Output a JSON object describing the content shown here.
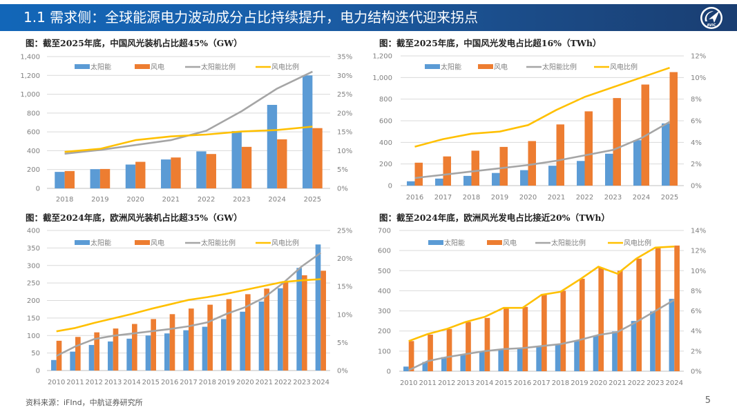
{
  "header": {
    "title": "1.1 需求侧：全球能源电力波动成分占比持续提升，电力结构迭代迎来拐点",
    "logo_icon": "avic-plane-logo-icon",
    "logo_text": "AVIC"
  },
  "legend_labels": [
    "太阳能",
    "风电",
    "太阳能比例",
    "风电比例"
  ],
  "colors": {
    "solar": "#5b9bd5",
    "wind": "#ed7d31",
    "solar_ratio": "#a5a5a5",
    "wind_ratio": "#ffc000",
    "banner": "#1a5ea8"
  },
  "footer": {
    "source": "资料来源：iFInd，中航证券研究所",
    "page": "5"
  },
  "chart_data": [
    {
      "type": "bar",
      "title": "图：截至2025年底，中国风光装机占比超45%（GW）",
      "categories": [
        "2018",
        "2019",
        "2020",
        "2021",
        "2022",
        "2023",
        "2024",
        "2025"
      ],
      "ylim": [
        0,
        1400
      ],
      "yticks": [
        0,
        200,
        400,
        600,
        800,
        1000,
        1200,
        1400
      ],
      "ytick_labels": [
        "0",
        "200",
        "400",
        "600",
        "800",
        "1,000",
        "1,200",
        "1,400"
      ],
      "y2lim": [
        0,
        35
      ],
      "y2ticks": [
        0,
        5,
        10,
        15,
        20,
        25,
        30,
        35
      ],
      "y2tick_labels": [
        "0%",
        "5%",
        "10%",
        "15%",
        "20%",
        "25%",
        "30%",
        "35%"
      ],
      "legend": "top",
      "series": [
        {
          "name": "太阳能",
          "kind": "bar",
          "axis": "left",
          "values": [
            175,
            204,
            253,
            307,
            393,
            609,
            887,
            1200
          ]
        },
        {
          "name": "风电",
          "kind": "bar",
          "axis": "left",
          "values": [
            184,
            206,
            282,
            328,
            365,
            441,
            521,
            640
          ]
        },
        {
          "name": "太阳能比例",
          "kind": "line",
          "axis": "right",
          "values": [
            9.2,
            10.2,
            11.5,
            12.8,
            15.3,
            20.5,
            26.5,
            31.0
          ]
        },
        {
          "name": "风电比例",
          "kind": "line",
          "axis": "right",
          "values": [
            9.7,
            10.5,
            12.8,
            13.8,
            14.3,
            15.1,
            15.5,
            16.4
          ]
        }
      ]
    },
    {
      "type": "bar",
      "title": "图：截至2025年底，中国风光发电占比超16%（TWh）",
      "categories": [
        "2016",
        "2017",
        "2018",
        "2019",
        "2020",
        "2021",
        "2022",
        "2023",
        "2024",
        "2025"
      ],
      "ylim": [
        0,
        1200
      ],
      "yticks": [
        0,
        200,
        400,
        600,
        800,
        1000,
        1200
      ],
      "ytick_labels": [
        "0",
        "200",
        "400",
        "600",
        "800",
        "1,000",
        "1,200"
      ],
      "y2lim": [
        0,
        12
      ],
      "y2ticks": [
        0,
        2,
        4,
        6,
        8,
        10,
        12
      ],
      "y2tick_labels": [
        "0%",
        "2%",
        "4%",
        "6%",
        "8%",
        "10%",
        "12%"
      ],
      "legend": "top",
      "series": [
        {
          "name": "太阳能",
          "kind": "bar",
          "axis": "left",
          "values": [
            40,
            65,
            90,
            117,
            143,
            184,
            228,
            295,
            420,
            575
          ]
        },
        {
          "name": "风电",
          "kind": "bar",
          "axis": "left",
          "values": [
            212,
            270,
            323,
            358,
            412,
            566,
            687,
            810,
            935,
            1050
          ]
        },
        {
          "name": "太阳能比例",
          "kind": "line",
          "axis": "right",
          "values": [
            0.7,
            1.0,
            1.3,
            1.6,
            1.9,
            2.3,
            2.8,
            3.3,
            4.4,
            5.9
          ]
        },
        {
          "name": "风电比例",
          "kind": "line",
          "axis": "right",
          "values": [
            3.6,
            4.3,
            4.8,
            5.0,
            5.6,
            7.0,
            8.2,
            9.1,
            10.0,
            10.9
          ]
        }
      ]
    },
    {
      "type": "bar",
      "title": "图：截至2024年底，欧洲风光装机占比超35%（GW）",
      "categories": [
        "2010",
        "2011",
        "2012",
        "2013",
        "2014",
        "2015",
        "2016",
        "2017",
        "2018",
        "2019",
        "2020",
        "2021",
        "2022",
        "2023",
        "2024"
      ],
      "ylim": [
        0,
        400
      ],
      "yticks": [
        0,
        50,
        100,
        150,
        200,
        250,
        300,
        350,
        400
      ],
      "ytick_labels": [
        "0",
        "50",
        "100",
        "150",
        "200",
        "250",
        "300",
        "350",
        "400"
      ],
      "y2lim": [
        0,
        25
      ],
      "y2ticks": [
        0,
        5,
        10,
        15,
        20,
        25
      ],
      "y2tick_labels": [
        "0%",
        "5%",
        "10%",
        "15%",
        "20%",
        "25%"
      ],
      "legend": "top",
      "series": [
        {
          "name": "太阳能",
          "kind": "bar",
          "axis": "left",
          "values": [
            30,
            54,
            73,
            83,
            91,
            100,
            106,
            115,
            125,
            147,
            168,
            197,
            235,
            293,
            360
          ]
        },
        {
          "name": "风电",
          "kind": "bar",
          "axis": "left",
          "values": [
            85,
            96,
            109,
            120,
            133,
            147,
            161,
            177,
            188,
            204,
            218,
            234,
            254,
            272,
            285
          ]
        },
        {
          "name": "太阳能比例",
          "kind": "line",
          "axis": "right",
          "values": [
            2.6,
            4.3,
            5.6,
            6.2,
            6.6,
            7.0,
            7.4,
            7.9,
            8.6,
            10.1,
            11.3,
            13.0,
            15.6,
            18.6,
            21.0
          ]
        },
        {
          "name": "风电比例",
          "kind": "line",
          "axis": "right",
          "values": [
            7.0,
            7.6,
            8.5,
            9.3,
            10.1,
            11.0,
            11.8,
            12.6,
            13.1,
            13.7,
            14.4,
            15.1,
            15.8,
            16.1,
            16.3
          ]
        }
      ]
    },
    {
      "type": "bar",
      "title": "图：截至2024年底，欧洲风光发电占比接近20%（TWh）",
      "categories": [
        "2010",
        "2011",
        "2012",
        "2013",
        "2014",
        "2015",
        "2016",
        "2017",
        "2018",
        "2019",
        "2020",
        "2021",
        "2022",
        "2023",
        "2024"
      ],
      "ylim": [
        0,
        700
      ],
      "yticks": [
        0,
        100,
        200,
        300,
        400,
        500,
        600,
        700
      ],
      "ytick_labels": [
        "0",
        "100",
        "200",
        "300",
        "400",
        "500",
        "600",
        "700"
      ],
      "y2lim": [
        0,
        14
      ],
      "y2ticks": [
        0,
        2,
        4,
        6,
        8,
        10,
        12,
        14
      ],
      "y2tick_labels": [
        "0%",
        "2%",
        "4%",
        "6%",
        "8%",
        "10%",
        "12%",
        "14%"
      ],
      "legend": "top",
      "series": [
        {
          "name": "太阳能",
          "kind": "bar",
          "axis": "left",
          "values": [
            23,
            46,
            70,
            85,
            97,
            107,
            113,
            120,
            133,
            150,
            175,
            198,
            250,
            297,
            360
          ]
        },
        {
          "name": "风电",
          "kind": "bar",
          "axis": "left",
          "values": [
            150,
            182,
            210,
            245,
            265,
            315,
            320,
            382,
            400,
            460,
            515,
            500,
            560,
            612,
            625
          ]
        },
        {
          "name": "太阳能比例",
          "kind": "line",
          "axis": "right",
          "values": [
            0.1,
            1.0,
            1.4,
            1.7,
            2.0,
            2.2,
            2.3,
            2.5,
            2.7,
            3.1,
            3.6,
            3.9,
            4.9,
            6.0,
            7.1
          ]
        },
        {
          "name": "风电比例",
          "kind": "line",
          "axis": "right",
          "values": [
            3.0,
            3.7,
            4.2,
            4.9,
            5.4,
            6.3,
            6.3,
            7.6,
            7.9,
            9.1,
            10.4,
            9.7,
            11.2,
            12.3,
            12.4
          ]
        }
      ]
    }
  ]
}
